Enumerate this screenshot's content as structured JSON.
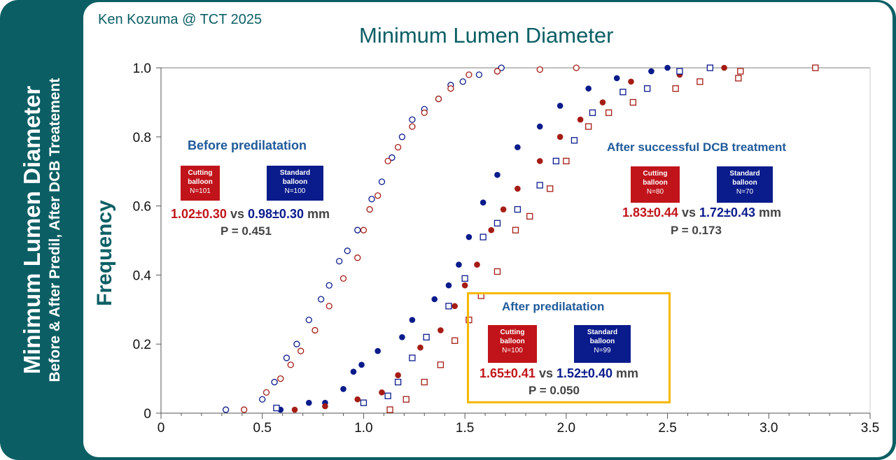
{
  "banner": {
    "line1": "Minimum Lumen Diameter",
    "line2": "Before & After Predil, After DCB Treatement"
  },
  "author": "Ken Kozuma @ TCT 2025",
  "colors": {
    "teal": "#0b5f64",
    "cutting": "#c0141a",
    "standard": "#0a1b8c",
    "cutting_curve": "#a51c14",
    "standard_curve": "#0a1b8c",
    "highlight": "#f7b800"
  },
  "annotations": {
    "before": {
      "title": "Before predilatation",
      "cutting": {
        "l1": "Cutting",
        "l2": "balloon",
        "n": "N=101"
      },
      "standard": {
        "l1": "Standard",
        "l2": "balloon",
        "n": "N=100"
      },
      "cut_val": "1.02±0.30",
      "vs": "vs",
      "std_val": "0.98±0.30",
      "unit": "mm",
      "p": "P = 0.451"
    },
    "after_predil": {
      "title": "After predilatation",
      "cutting": {
        "l1": "Cutting",
        "l2": "balloon",
        "n": "N=100"
      },
      "standard": {
        "l1": "Standard",
        "l2": "balloon",
        "n": "N=99"
      },
      "cut_val": "1.65±0.41",
      "vs": "vs",
      "std_val": "1.52±0.40",
      "unit": "mm",
      "p": "P = 0.050"
    },
    "after_dcb": {
      "title": "After successful DCB treatment",
      "cutting": {
        "l1": "Cutting",
        "l2": "balloon",
        "n": "N=80"
      },
      "standard": {
        "l1": "Standard",
        "l2": "balloon",
        "n": "N=70"
      },
      "cut_val": "1.83±0.44",
      "vs": "vs",
      "std_val": "1.72±0.43",
      "unit": "mm",
      "p": "P = 0.173"
    }
  },
  "chart_data": {
    "type": "scatter",
    "title": "Minimum Lumen Diameter",
    "xlabel": "",
    "ylabel": "Frequency",
    "xlim": [
      0,
      3.5
    ],
    "ylim": [
      0,
      1.0
    ],
    "xticks": [
      "0",
      "0.5",
      "1.0",
      "1.5",
      "2.0",
      "2.5",
      "3.0",
      "3.5"
    ],
    "yticks": [
      "0",
      "0.2",
      "0.4",
      "0.6",
      "0.8",
      "1.0"
    ],
    "grid": false,
    "series": [
      {
        "group": "before",
        "arm": "standard",
        "marker": "open-circle",
        "color": "#0a1b8c",
        "points": [
          [
            0.32,
            0.01
          ],
          [
            0.5,
            0.04
          ],
          [
            0.56,
            0.09
          ],
          [
            0.62,
            0.16
          ],
          [
            0.67,
            0.2
          ],
          [
            0.73,
            0.27
          ],
          [
            0.79,
            0.33
          ],
          [
            0.83,
            0.37
          ],
          [
            0.88,
            0.44
          ],
          [
            0.92,
            0.47
          ],
          [
            0.97,
            0.53
          ],
          [
            1.04,
            0.62
          ],
          [
            1.09,
            0.67
          ],
          [
            1.14,
            0.74
          ],
          [
            1.19,
            0.8
          ],
          [
            1.24,
            0.85
          ],
          [
            1.3,
            0.88
          ],
          [
            1.37,
            0.91
          ],
          [
            1.43,
            0.95
          ],
          [
            1.49,
            0.96
          ],
          [
            1.57,
            0.98
          ],
          [
            1.68,
            1.0
          ]
        ]
      },
      {
        "group": "before",
        "arm": "cutting",
        "marker": "open-circle",
        "color": "#a51c14",
        "points": [
          [
            0.41,
            0.01
          ],
          [
            0.52,
            0.06
          ],
          [
            0.59,
            0.1
          ],
          [
            0.64,
            0.14
          ],
          [
            0.69,
            0.18
          ],
          [
            0.76,
            0.24
          ],
          [
            0.83,
            0.31
          ],
          [
            0.9,
            0.39
          ],
          [
            0.97,
            0.45
          ],
          [
            1.0,
            0.53
          ],
          [
            1.03,
            0.59
          ],
          [
            1.07,
            0.63
          ],
          [
            1.12,
            0.73
          ],
          [
            1.17,
            0.77
          ],
          [
            1.24,
            0.83
          ],
          [
            1.3,
            0.87
          ],
          [
            1.37,
            0.91
          ],
          [
            1.43,
            0.94
          ],
          [
            1.52,
            0.98
          ],
          [
            1.66,
            0.99
          ],
          [
            1.87,
            0.995
          ],
          [
            2.05,
            1.0
          ]
        ]
      },
      {
        "group": "after_predil",
        "arm": "standard",
        "marker": "filled-circle",
        "color": "#0a1b8c",
        "points": [
          [
            0.59,
            0.01
          ],
          [
            0.73,
            0.03
          ],
          [
            0.81,
            0.03
          ],
          [
            0.9,
            0.07
          ],
          [
            0.95,
            0.12
          ],
          [
            0.99,
            0.14
          ],
          [
            1.07,
            0.18
          ],
          [
            1.19,
            0.22
          ],
          [
            1.24,
            0.27
          ],
          [
            1.35,
            0.33
          ],
          [
            1.42,
            0.37
          ],
          [
            1.47,
            0.43
          ],
          [
            1.52,
            0.51
          ],
          [
            1.59,
            0.61
          ],
          [
            1.66,
            0.69
          ],
          [
            1.76,
            0.77
          ],
          [
            1.87,
            0.83
          ],
          [
            1.97,
            0.89
          ],
          [
            2.11,
            0.94
          ],
          [
            2.25,
            0.97
          ],
          [
            2.42,
            0.99
          ],
          [
            2.5,
            1.0
          ]
        ]
      },
      {
        "group": "after_predil",
        "arm": "cutting",
        "marker": "filled-circle",
        "color": "#a51c14",
        "points": [
          [
            0.66,
            0.01
          ],
          [
            0.81,
            0.02
          ],
          [
            0.97,
            0.04
          ],
          [
            1.09,
            0.06
          ],
          [
            1.17,
            0.11
          ],
          [
            1.28,
            0.19
          ],
          [
            1.38,
            0.24
          ],
          [
            1.45,
            0.31
          ],
          [
            1.5,
            0.37
          ],
          [
            1.56,
            0.43
          ],
          [
            1.63,
            0.53
          ],
          [
            1.69,
            0.59
          ],
          [
            1.76,
            0.65
          ],
          [
            1.87,
            0.73
          ],
          [
            1.97,
            0.8
          ],
          [
            2.07,
            0.85
          ],
          [
            2.18,
            0.9
          ],
          [
            2.32,
            0.96
          ],
          [
            2.56,
            0.98
          ],
          [
            2.78,
            1.0
          ]
        ]
      },
      {
        "group": "after_dcb",
        "arm": "standard",
        "marker": "open-square",
        "color": "#0a1b8c",
        "points": [
          [
            0.57,
            0.015
          ],
          [
            1.0,
            0.03
          ],
          [
            1.12,
            0.05
          ],
          [
            1.17,
            0.09
          ],
          [
            1.24,
            0.16
          ],
          [
            1.31,
            0.22
          ],
          [
            1.42,
            0.31
          ],
          [
            1.5,
            0.39
          ],
          [
            1.59,
            0.51
          ],
          [
            1.66,
            0.55
          ],
          [
            1.76,
            0.59
          ],
          [
            1.87,
            0.66
          ],
          [
            1.95,
            0.73
          ],
          [
            2.04,
            0.79
          ],
          [
            2.13,
            0.87
          ],
          [
            2.28,
            0.93
          ],
          [
            2.4,
            0.94
          ],
          [
            2.56,
            0.99
          ],
          [
            2.71,
            1.0
          ]
        ]
      },
      {
        "group": "after_dcb",
        "arm": "cutting",
        "marker": "open-square",
        "color": "#a51c14",
        "points": [
          [
            1.13,
            0.01
          ],
          [
            1.21,
            0.04
          ],
          [
            1.3,
            0.09
          ],
          [
            1.38,
            0.14
          ],
          [
            1.45,
            0.21
          ],
          [
            1.52,
            0.27
          ],
          [
            1.58,
            0.34
          ],
          [
            1.66,
            0.41
          ],
          [
            1.75,
            0.53
          ],
          [
            1.82,
            0.57
          ],
          [
            1.92,
            0.65
          ],
          [
            2.0,
            0.73
          ],
          [
            2.11,
            0.83
          ],
          [
            2.21,
            0.87
          ],
          [
            2.33,
            0.9
          ],
          [
            2.54,
            0.94
          ],
          [
            2.66,
            0.96
          ],
          [
            2.85,
            0.97
          ],
          [
            2.86,
            0.99
          ],
          [
            3.23,
            1.0
          ]
        ]
      }
    ]
  }
}
